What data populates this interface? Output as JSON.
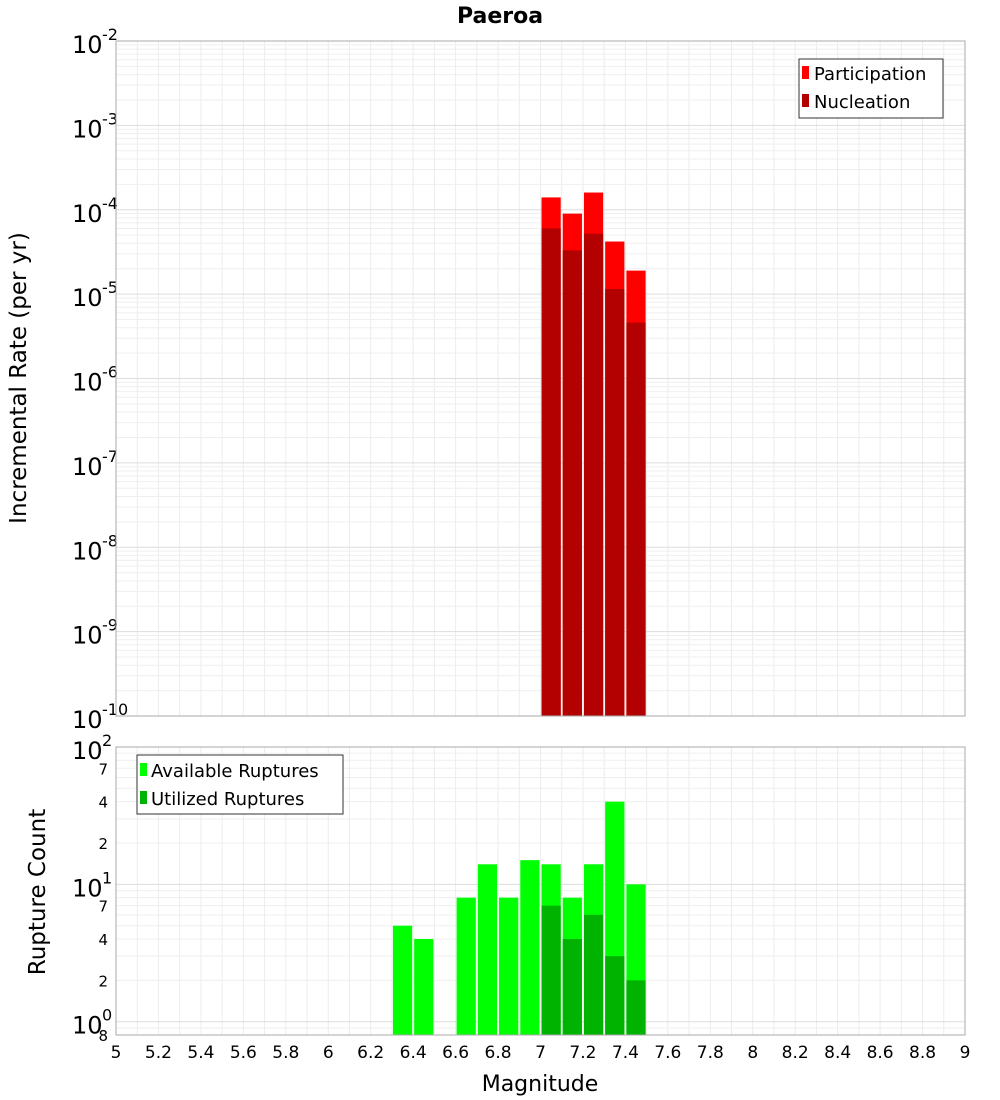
{
  "chart_data": [
    {
      "type": "bar",
      "title": "Paeroa",
      "ylabel": "Incremental Rate (per yr)",
      "yscale": "log",
      "ylim": [
        1e-10,
        0.01
      ],
      "xlim": [
        5,
        9
      ],
      "bin_width": 0.1,
      "y_tick_labels": [
        {
          "base": "10",
          "exp": "-2"
        },
        {
          "base": "10",
          "exp": "-3"
        },
        {
          "base": "10",
          "exp": "-4"
        },
        {
          "base": "10",
          "exp": "-5"
        },
        {
          "base": "10",
          "exp": "-6"
        },
        {
          "base": "10",
          "exp": "-7"
        },
        {
          "base": "10",
          "exp": "-8"
        },
        {
          "base": "10",
          "exp": "-9"
        },
        {
          "base": "10",
          "exp": "-10"
        }
      ],
      "y_tick_values": [
        0.01,
        0.001,
        0.0001,
        1e-05,
        1e-06,
        1e-07,
        1e-08,
        1e-09,
        1e-10
      ],
      "legend_position": "top-right",
      "series": [
        {
          "name": "Participation",
          "color": "#ff0000",
          "x": [
            7.05,
            7.15,
            7.25,
            7.35,
            7.45
          ],
          "values": [
            0.00014,
            9e-05,
            0.00016,
            4.2e-05,
            1.9e-05
          ]
        },
        {
          "name": "Nucleation",
          "color": "#b30000",
          "x": [
            7.05,
            7.15,
            7.25,
            7.35,
            7.45
          ],
          "values": [
            6e-05,
            3.3e-05,
            5.2e-05,
            1.15e-05,
            4.6e-06
          ]
        }
      ]
    },
    {
      "type": "bar",
      "ylabel": "Rupture Count",
      "xlabel": "Magnitude",
      "yscale": "log",
      "ylim": [
        0.8,
        100
      ],
      "xlim": [
        5,
        9
      ],
      "bin_width": 0.1,
      "x_tick_labels": [
        "5",
        "5.2",
        "5.4",
        "5.6",
        "5.8",
        "6",
        "6.2",
        "6.4",
        "6.6",
        "6.8",
        "7",
        "7.2",
        "7.4",
        "7.6",
        "7.8",
        "8",
        "8.2",
        "8.4",
        "8.6",
        "8.8",
        "9"
      ],
      "y_major_ticks": [
        {
          "value": 100,
          "base": "10",
          "exp": "2"
        },
        {
          "value": 10,
          "base": "10",
          "exp": "1"
        },
        {
          "value": 1,
          "base": "10",
          "exp": "0"
        }
      ],
      "y_minor_ticks": [
        {
          "value": 70,
          "label": "7"
        },
        {
          "value": 40,
          "label": "4"
        },
        {
          "value": 20,
          "label": "2"
        },
        {
          "value": 7,
          "label": "7"
        },
        {
          "value": 4,
          "label": "4"
        },
        {
          "value": 2,
          "label": "2"
        },
        {
          "value": 0.8,
          "label": "8"
        }
      ],
      "legend_position": "top-left",
      "series": [
        {
          "name": "Available Ruptures",
          "color": "#00ff00",
          "x": [
            6.35,
            6.45,
            6.65,
            6.75,
            6.85,
            6.95,
            7.05,
            7.15,
            7.25,
            7.35,
            7.45
          ],
          "values": [
            5,
            4,
            8,
            14,
            8,
            15,
            14,
            8,
            14,
            40,
            10
          ]
        },
        {
          "name": "Utilized Ruptures",
          "color": "#00b300",
          "x": [
            7.05,
            7.15,
            7.25,
            7.35,
            7.45
          ],
          "values": [
            7,
            4,
            6,
            3,
            2
          ]
        }
      ]
    }
  ]
}
